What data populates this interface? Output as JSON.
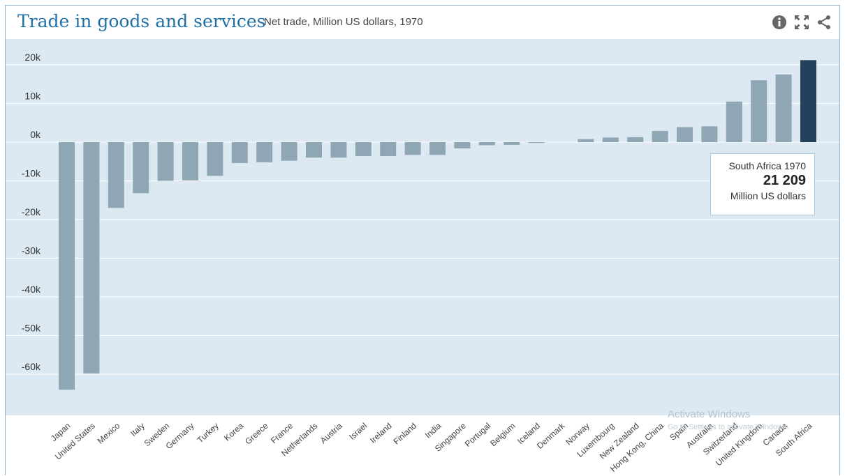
{
  "header": {
    "title": "Trade in goods and services",
    "subtitle": "Net trade, Million US dollars, 1970",
    "icons": [
      "info-icon",
      "expand-icon",
      "share-icon"
    ]
  },
  "tooltip": {
    "label": "South Africa 1970",
    "value": "21 209",
    "unit": "Million US dollars"
  },
  "watermark": {
    "line1": "Activate Windows",
    "line2": "Go to Settings to activate Windows."
  },
  "colors": {
    "bar": "#8fa6b4",
    "highlight": "#24405a",
    "plot_bg": "#dde9f2",
    "grid": "#ffffff",
    "title": "#1f70a6"
  },
  "chart_data": {
    "type": "bar",
    "title": "Trade in goods and services",
    "subtitle": "Net trade, Million US dollars, 1970",
    "ylabel": "",
    "xlabel": "",
    "ylim": [
      -70000,
      25000
    ],
    "yticks": [
      20000,
      10000,
      0,
      -10000,
      -20000,
      -30000,
      -40000,
      -50000,
      -60000
    ],
    "ytick_labels": [
      "20k",
      "10k",
      "0k",
      "-10k",
      "-20k",
      "-30k",
      "-40k",
      "-50k",
      "-60k"
    ],
    "grid": true,
    "highlight": "South Africa",
    "categories": [
      "Japan",
      "United States",
      "Mexico",
      "Italy",
      "Sweden",
      "Germany",
      "Turkey",
      "Korea",
      "Greece",
      "France",
      "Netherlands",
      "Austria",
      "Israel",
      "Ireland",
      "Finland",
      "India",
      "Singapore",
      "Portugal",
      "Belgium",
      "Iceland",
      "Denmark",
      "Norway",
      "Luxembourg",
      "New Zealand",
      "Hong Kong, China",
      "Spain",
      "Australia",
      "Switzerland",
      "United Kingdom",
      "Canada",
      "South Africa"
    ],
    "values": [
      -64000,
      -59800,
      -17000,
      -13200,
      -10000,
      -9900,
      -8700,
      -5400,
      -5200,
      -4800,
      -4000,
      -4000,
      -3600,
      -3600,
      -3300,
      -3300,
      -1600,
      -800,
      -700,
      -200,
      0,
      800,
      1200,
      1300,
      2900,
      3900,
      4100,
      10500,
      16000,
      17500,
      21209
    ]
  }
}
